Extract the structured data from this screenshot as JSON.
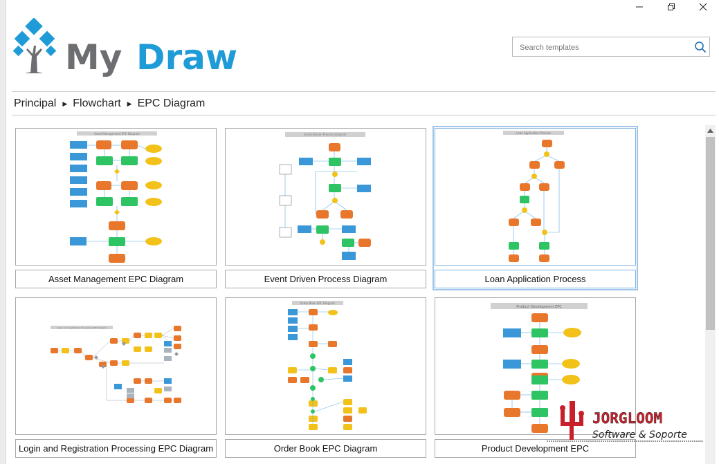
{
  "app": {
    "logo_text": "MyDraw",
    "colors": {
      "brand_gray": "#6d6e71",
      "brand_blue": "#1f9bd7",
      "accent": "#1f9bd7"
    }
  },
  "window_controls": {
    "minimize_icon": "minimize-icon",
    "maximize_icon": "restore-icon",
    "close_icon": "close-icon"
  },
  "search": {
    "placeholder": "Search templates",
    "value": "",
    "icon": "search-icon"
  },
  "breadcrumb": {
    "items": [
      "Principal",
      "Flowchart",
      "EPC Diagram"
    ],
    "separator_icon": "triangle-right-icon"
  },
  "templates": [
    {
      "label": "Asset Management EPC Diagram",
      "thumb_title": "Asset Management EPC Diagram",
      "selected": false
    },
    {
      "label": "Event Driven Process Diagram",
      "thumb_title": "Event-Driven Process Diagram",
      "selected": false
    },
    {
      "label": "Loan Application Process",
      "thumb_title": "Loan Application Process",
      "selected": true
    },
    {
      "label": "Login and Registration Processing EPC Diagram",
      "thumb_title": "Login and Registration Processing EPC Diagram",
      "selected": false
    },
    {
      "label": "Order Book EPC Diagram",
      "thumb_title": "Order Book EPC Diagram",
      "selected": false
    },
    {
      "label": "Product Development EPC",
      "thumb_title": "Product Development EPC",
      "selected": false
    }
  ],
  "watermark": {
    "line1": "JORGLOOM",
    "line2": "Software & Soporte"
  }
}
